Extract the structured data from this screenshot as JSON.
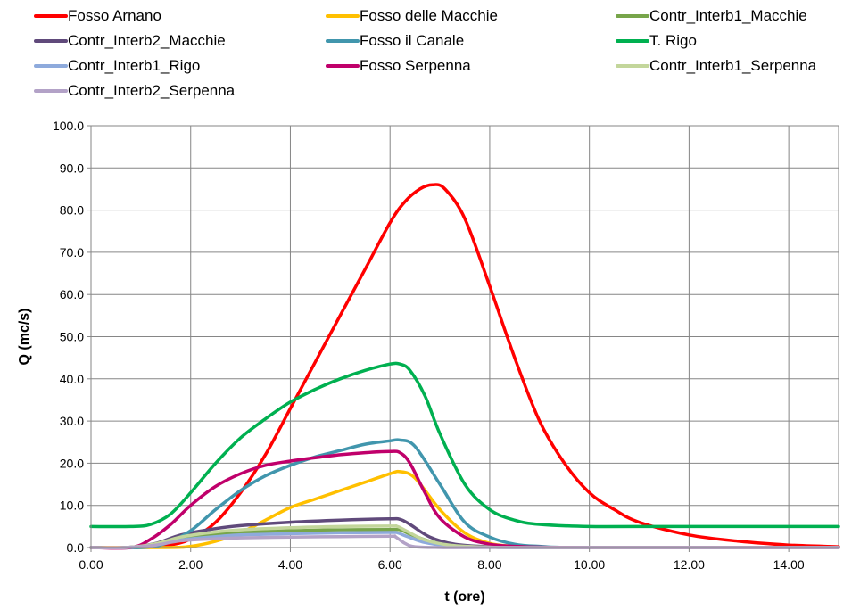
{
  "chart_data": {
    "type": "line",
    "xlabel": "t (ore)",
    "ylabel": "Q (mc/s)",
    "xlim": [
      0,
      15
    ],
    "ylim": [
      0,
      100
    ],
    "x_ticks": [
      "0.00",
      "2.00",
      "4.00",
      "6.00",
      "8.00",
      "10.00",
      "12.00",
      "14.00"
    ],
    "y_ticks": [
      "0.0",
      "10.0",
      "20.0",
      "30.0",
      "40.0",
      "50.0",
      "60.0",
      "70.0",
      "80.0",
      "90.0",
      "100.0"
    ],
    "grid": true,
    "legend_position": "top",
    "series": [
      {
        "name": "Fosso Arnano",
        "color": "#ff0000",
        "x": [
          0,
          0.8,
          1.5,
          2,
          2.5,
          3,
          3.5,
          4,
          4.5,
          5,
          5.5,
          6,
          6.3,
          6.6,
          6.85,
          7.1,
          7.5,
          8,
          8.5,
          9,
          9.5,
          10,
          10.5,
          11,
          12,
          13,
          14,
          15
        ],
        "y": [
          0,
          0,
          0.5,
          2,
          6,
          13,
          22,
          33,
          44,
          55,
          66,
          77,
          82,
          85,
          86,
          85,
          78,
          62,
          45,
          30,
          20,
          13,
          9,
          6,
          3,
          1.5,
          0.6,
          0.2
        ]
      },
      {
        "name": "Fosso delle Macchie",
        "color": "#ffc000",
        "x": [
          0,
          1.5,
          2,
          2.5,
          3,
          3.5,
          4,
          4.5,
          5,
          5.5,
          6,
          6.2,
          6.5,
          7,
          7.5,
          8,
          8.5,
          9,
          10,
          15
        ],
        "y": [
          0,
          0,
          0.3,
          1.5,
          3.5,
          6.5,
          9.5,
          11.5,
          13.5,
          15.5,
          17.5,
          18,
          16.5,
          9,
          3.5,
          1,
          0.3,
          0,
          0,
          0
        ]
      },
      {
        "name": "Contr_Interb1_Macchie",
        "color": "#77a54a",
        "x": [
          0,
          0.7,
          1.3,
          1.8,
          2.5,
          3,
          4,
          5,
          6,
          6.2,
          6.4,
          6.8,
          7.3,
          8,
          9,
          15
        ],
        "y": [
          0,
          0,
          0.8,
          2.2,
          3.2,
          3.6,
          4,
          4.2,
          4.3,
          4.2,
          3.2,
          1.5,
          0.5,
          0.1,
          0,
          0
        ]
      },
      {
        "name": "Contr_Interb2_Macchie",
        "color": "#604a7b",
        "x": [
          0,
          0.7,
          1.3,
          1.8,
          2.5,
          3,
          4,
          5,
          6,
          6.2,
          6.4,
          6.8,
          7.3,
          8,
          9,
          15
        ],
        "y": [
          0,
          0,
          1,
          3,
          4.5,
          5.2,
          6,
          6.5,
          6.8,
          6.7,
          5.5,
          2.5,
          0.8,
          0.2,
          0,
          0
        ]
      },
      {
        "name": "Fosso il Canale",
        "color": "#4196ad",
        "x": [
          0,
          1,
          1.5,
          2,
          2.5,
          3,
          3.5,
          4,
          4.5,
          5,
          5.5,
          6,
          6.2,
          6.5,
          7,
          7.5,
          8,
          8.5,
          9,
          10,
          15
        ],
        "y": [
          0,
          0,
          1,
          4,
          9,
          13.5,
          17,
          19.5,
          21.5,
          23,
          24.5,
          25.3,
          25.5,
          24,
          15,
          6,
          2.5,
          0.8,
          0.3,
          0,
          0
        ]
      },
      {
        "name": "T. Rigo",
        "color": "#00b050",
        "x": [
          0,
          0.8,
          1.2,
          1.6,
          2,
          2.5,
          3,
          3.5,
          4,
          4.5,
          5,
          5.5,
          6,
          6.2,
          6.4,
          6.7,
          7,
          7.5,
          8,
          8.5,
          9,
          10,
          11,
          15
        ],
        "y": [
          5,
          5,
          5.5,
          8,
          13,
          20,
          26,
          30.5,
          34.5,
          37.5,
          40,
          42,
          43.5,
          43.5,
          42,
          36,
          27,
          15,
          9,
          6.5,
          5.5,
          5,
          5,
          5
        ]
      },
      {
        "name": "Contr_Interb1_Rigo",
        "color": "#8eaadc",
        "x": [
          0,
          0.7,
          1.3,
          1.8,
          2.5,
          3,
          4,
          5,
          6,
          6.15,
          6.35,
          6.7,
          7.2,
          8,
          9,
          15
        ],
        "y": [
          0,
          0,
          0.7,
          1.8,
          2.6,
          3,
          3.3,
          3.5,
          3.6,
          3.5,
          2.6,
          1.2,
          0.4,
          0.1,
          0,
          0
        ]
      },
      {
        "name": "Fosso Serpenna",
        "color": "#c0006b",
        "x": [
          0,
          0.8,
          1.2,
          1.6,
          2,
          2.5,
          3,
          3.5,
          4,
          4.5,
          5,
          5.5,
          6,
          6.2,
          6.4,
          6.7,
          7,
          7.5,
          8,
          8.5,
          9,
          10,
          15
        ],
        "y": [
          0,
          0,
          2,
          5.5,
          10,
          14.5,
          17.5,
          19.5,
          20.5,
          21.3,
          22,
          22.5,
          22.8,
          22.5,
          20,
          13,
          7,
          2.5,
          0.8,
          0.3,
          0.1,
          0,
          0
        ]
      },
      {
        "name": "Contr_Interb1_Serpenna",
        "color": "#c3d69b",
        "x": [
          0,
          0.7,
          1.3,
          1.8,
          2.5,
          3,
          4,
          5,
          6,
          6.15,
          6.35,
          6.7,
          7.2,
          8,
          9,
          15
        ],
        "y": [
          0,
          0,
          0.9,
          2.5,
          3.7,
          4.2,
          4.7,
          5,
          5.1,
          5,
          3.8,
          1.8,
          0.6,
          0.1,
          0,
          0
        ]
      },
      {
        "name": "Contr_Interb2_Serpenna",
        "color": "#b3a2c7",
        "x": [
          0,
          0.7,
          1.3,
          1.8,
          2.5,
          3,
          4,
          5,
          6,
          6.1,
          6.3,
          6.5,
          7,
          8,
          15
        ],
        "y": [
          0,
          0,
          0.6,
          1.6,
          2.1,
          2.3,
          2.5,
          2.6,
          2.7,
          2.6,
          1,
          0.2,
          0,
          0,
          0
        ]
      }
    ]
  }
}
